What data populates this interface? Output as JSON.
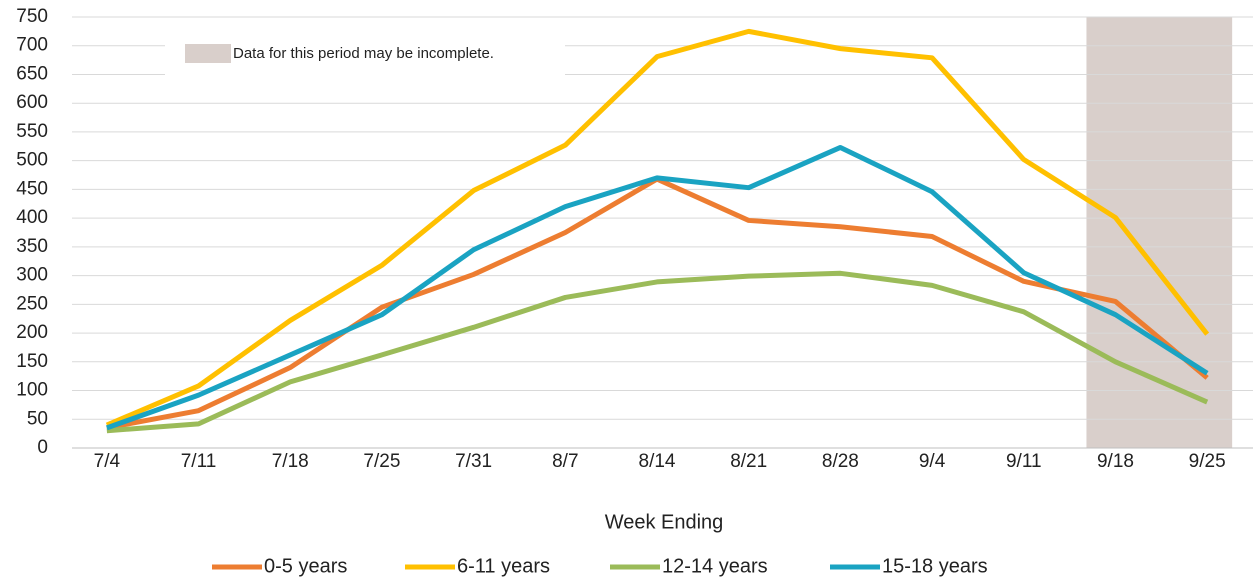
{
  "chart_data": {
    "type": "line",
    "annotation": "Data for this period may be incomplete.",
    "x_label": "Week Ending",
    "categories": [
      "7/4",
      "7/11",
      "7/18",
      "7/25",
      "7/31",
      "8/7",
      "8/14",
      "8/21",
      "8/28",
      "9/4",
      "9/11",
      "9/18",
      "9/25"
    ],
    "series": [
      {
        "name": "0-5 years",
        "color": "#ed7d31",
        "values": [
          35,
          65,
          140,
          245,
          302,
          375,
          468,
          396,
          385,
          368,
          290,
          255,
          122
        ]
      },
      {
        "name": "6-11 years",
        "color": "#ffc000",
        "values": [
          40,
          108,
          222,
          318,
          448,
          527,
          681,
          725,
          695,
          679,
          502,
          401,
          198
        ]
      },
      {
        "name": "12-14 years",
        "color": "#9bbb59",
        "values": [
          30,
          42,
          115,
          162,
          210,
          262,
          289,
          299,
          304,
          283,
          237,
          150,
          80
        ]
      },
      {
        "name": "15-18 years",
        "color": "#1aa3c2",
        "values": [
          35,
          92,
          162,
          232,
          345,
          420,
          470,
          453,
          523,
          446,
          305,
          232,
          130
        ]
      }
    ],
    "ylim": [
      0,
      750
    ],
    "yticks": [
      0,
      50,
      100,
      150,
      200,
      250,
      300,
      350,
      400,
      450,
      500,
      550,
      600,
      650,
      700,
      750
    ],
    "grid": true
  }
}
